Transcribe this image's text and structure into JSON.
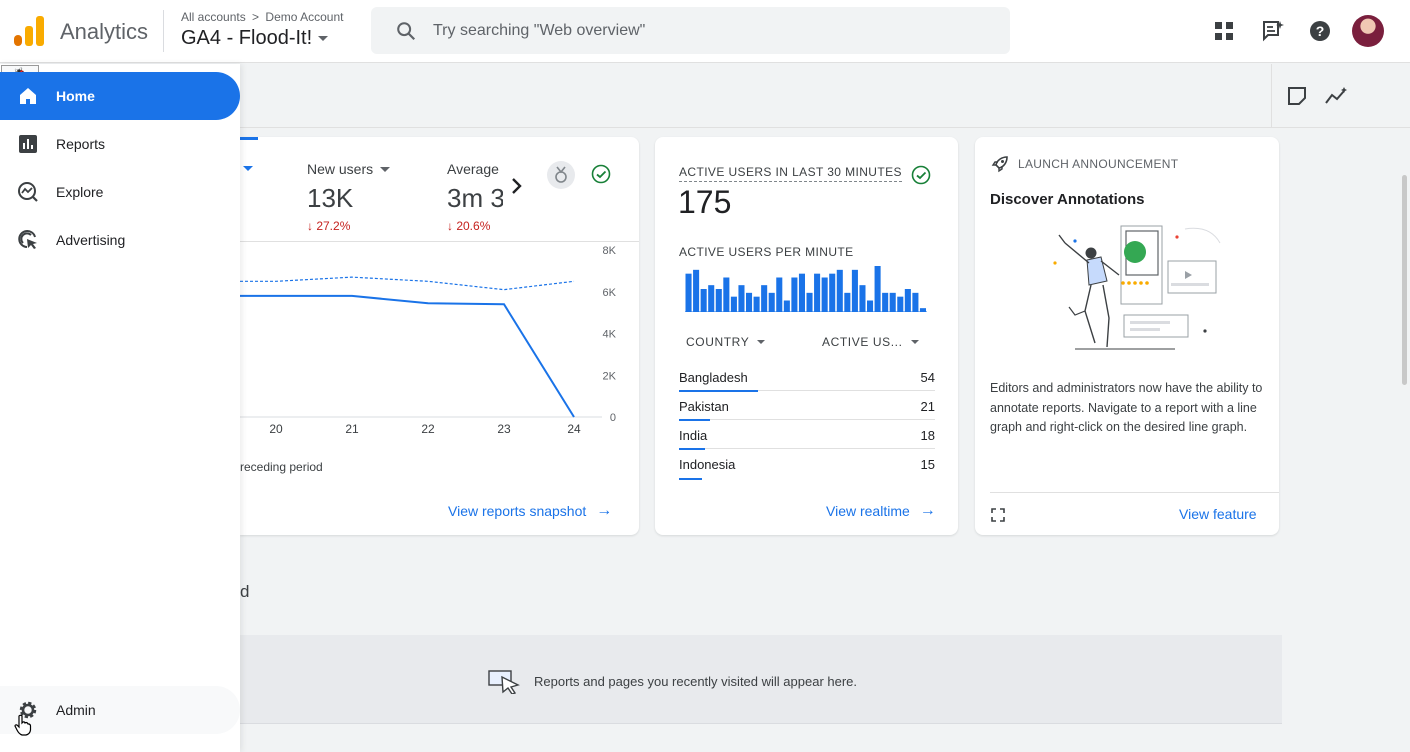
{
  "header": {
    "app_title": "Analytics",
    "breadcrumb_root": "All accounts",
    "breadcrumb_separator": ">",
    "breadcrumb_account": "Demo Account",
    "property_name": "GA4 - Flood-It!",
    "search_placeholder": "Try searching \"Web overview\"",
    "icons": [
      "apps-grid-icon",
      "feedback-icon",
      "help-icon",
      "avatar"
    ]
  },
  "sidebar": {
    "debug_badge": "🐞",
    "items": [
      {
        "label": "Home",
        "icon": "home-icon",
        "active": true
      },
      {
        "label": "Reports",
        "icon": "bar-chart-icon",
        "active": false
      },
      {
        "label": "Explore",
        "icon": "explore-icon",
        "active": false
      },
      {
        "label": "Advertising",
        "icon": "advertising-icon",
        "active": false
      }
    ],
    "admin_label": "Admin"
  },
  "overview_card": {
    "metrics": [
      {
        "label": "New users",
        "value": "13K",
        "delta": "↓ 27.2%"
      },
      {
        "label": "Average",
        "value": "3m 3",
        "delta": "↓ 20.6%"
      }
    ],
    "chart_data": {
      "type": "line",
      "x": [
        "20",
        "21",
        "22",
        "23",
        "24"
      ],
      "series": [
        {
          "values": [
            5800,
            5800,
            5450,
            5400,
            0
          ]
        },
        {
          "values": [
            6500,
            6700,
            6500,
            6100,
            6500
          ]
        }
      ],
      "y_ticks": [
        "8K",
        "6K",
        "4K",
        "2K",
        "0"
      ],
      "ylim": [
        0,
        8000
      ]
    },
    "legend_fragment": "receding period",
    "link": "View reports snapshot"
  },
  "realtime_card": {
    "title": "ACTIVE USERS IN LAST 30 MINUTES",
    "value": "175",
    "per_minute_label": "ACTIVE USERS PER MINUTE",
    "per_minute_values": [
      10,
      11,
      6,
      7,
      6,
      9,
      4,
      7,
      5,
      4,
      7,
      5,
      9,
      3,
      9,
      10,
      5,
      10,
      9,
      10,
      11,
      5,
      11,
      7,
      3,
      12,
      5,
      5,
      4,
      6,
      5,
      1
    ],
    "col_country": "COUNTRY",
    "col_users": "ACTIVE US...",
    "rows": [
      {
        "country": "Bangladesh",
        "value": "54",
        "share": 0.31
      },
      {
        "country": "Pakistan",
        "value": "21",
        "share": 0.12
      },
      {
        "country": "India",
        "value": "18",
        "share": 0.1
      },
      {
        "country": "Indonesia",
        "value": "15",
        "share": 0.09
      }
    ],
    "link": "View realtime"
  },
  "launch_card": {
    "header": "LAUNCH ANNOUNCEMENT",
    "title": "Discover Annotations",
    "body": "Editors and administrators now have the ability to annotate reports. Navigate to a report with a line graph and right-click on the desired line graph.",
    "link": "View feature"
  },
  "recent": {
    "section_fragment": "d",
    "message": "Reports and pages you recently visited will appear here."
  },
  "colors": {
    "accent": "#1a73e8",
    "negative": "#c5221f",
    "success": "#188038"
  }
}
